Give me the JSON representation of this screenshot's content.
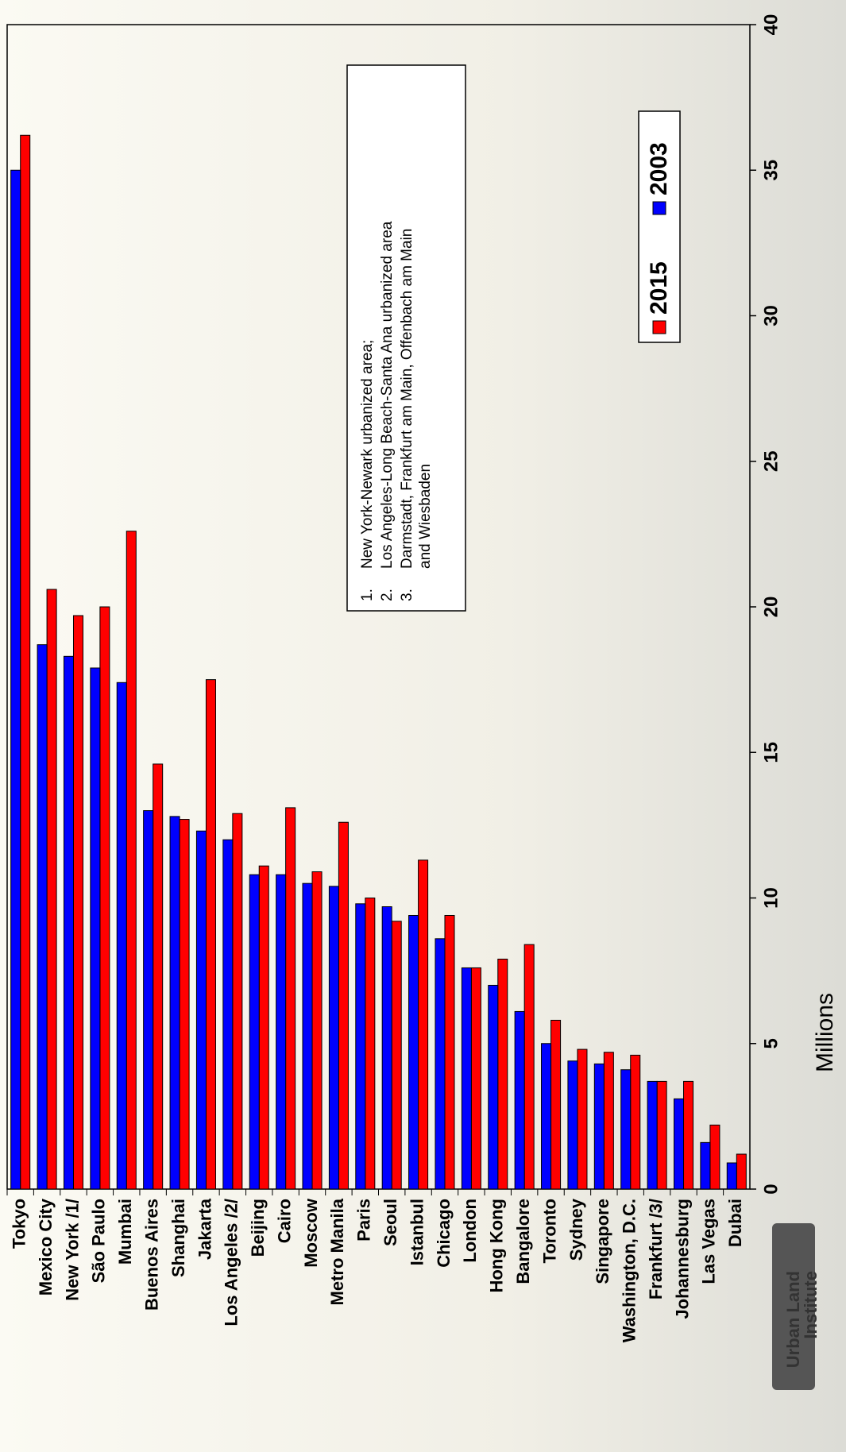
{
  "chart_data": {
    "type": "bar",
    "orientation": "rotated",
    "x_label": "Millions",
    "categories": [
      "Tokyo",
      "Mexico City",
      "New York /1/",
      "São Paulo",
      "Mumbai",
      "Buenos Aires",
      "Shanghai",
      "Jakarta",
      "Los Angeles /2/",
      "Beijing",
      "Cairo",
      "Moscow",
      "Metro Manila",
      "Paris",
      "Seoul",
      "Istanbul",
      "Chicago",
      "London",
      "Hong Kong",
      "Bangalore",
      "Toronto",
      "Sydney",
      "Singapore",
      "Washington, D.C.",
      "Frankfurt /3/",
      "Johannesburg",
      "Las Vegas",
      "Dubai"
    ],
    "series": [
      {
        "name": "2015",
        "color": "#ff0000",
        "values": [
          36.2,
          20.6,
          19.7,
          20.0,
          22.6,
          14.6,
          12.7,
          17.5,
          12.9,
          11.1,
          13.1,
          10.9,
          12.6,
          10.0,
          9.2,
          11.3,
          9.4,
          7.6,
          7.9,
          8.4,
          5.8,
          4.8,
          4.7,
          4.6,
          3.7,
          3.7,
          2.2,
          1.2
        ]
      },
      {
        "name": "2003",
        "color": "#0000ff",
        "values": [
          35.0,
          18.7,
          18.3,
          17.9,
          17.4,
          13.0,
          12.8,
          12.3,
          12.0,
          10.8,
          10.8,
          10.5,
          10.4,
          9.8,
          9.7,
          9.4,
          8.6,
          7.6,
          7.0,
          6.1,
          5.0,
          4.4,
          4.3,
          4.1,
          3.7,
          3.1,
          1.6,
          0.9
        ]
      }
    ],
    "ylim": [
      0,
      40
    ],
    "yticks": [
      0,
      5,
      10,
      15,
      20,
      25,
      30,
      35,
      40
    ],
    "notes": [
      {
        "number": "1.",
        "lines": [
          "New York-Newark urbanized area;"
        ]
      },
      {
        "number": "2.",
        "lines": [
          "Los Angeles-Long Beach-Santa Ana urbanized area"
        ]
      },
      {
        "number": "3.",
        "lines": [
          "Darmstadt, Frankfurt am Main, Offenbach am Main",
          "and Wiesbaden"
        ]
      }
    ]
  },
  "logo": {
    "line1": "Urban Land",
    "line2": "Institute"
  }
}
